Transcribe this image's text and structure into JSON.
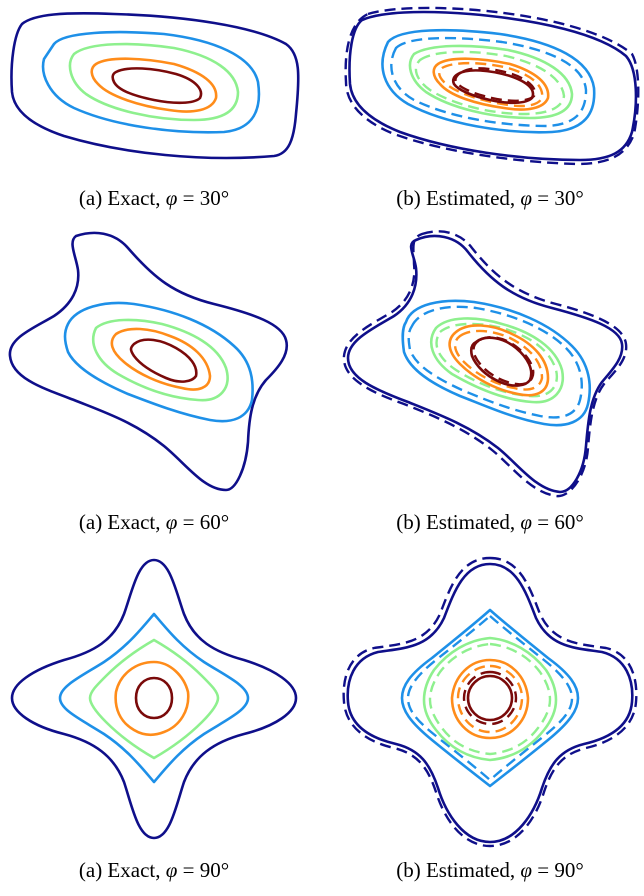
{
  "colors": {
    "level_1": "#0f0f8a",
    "level_2": "#1e90e8",
    "level_3": "#8ef08e",
    "level_4": "#ff8c1a",
    "level_5": "#7a0a0a"
  },
  "panels": [
    {
      "caption_prefix": "(a) Exact, ",
      "symbol": "φ",
      "equals": " = ",
      "angle": "30°"
    },
    {
      "caption_prefix": "(b) Estimated, ",
      "symbol": "φ",
      "equals": " = ",
      "angle": "30°"
    },
    {
      "caption_prefix": "(a) Exact, ",
      "symbol": "φ",
      "equals": " = ",
      "angle": "60°"
    },
    {
      "caption_prefix": "(b) Estimated, ",
      "symbol": "φ",
      "equals": " = ",
      "angle": "60°"
    },
    {
      "caption_prefix": "(a) Exact, ",
      "symbol": "φ",
      "equals": " = ",
      "angle": "90°"
    },
    {
      "caption_prefix": "(b) Estimated, ",
      "symbol": "φ",
      "equals": " = ",
      "angle": "90°"
    }
  ]
}
